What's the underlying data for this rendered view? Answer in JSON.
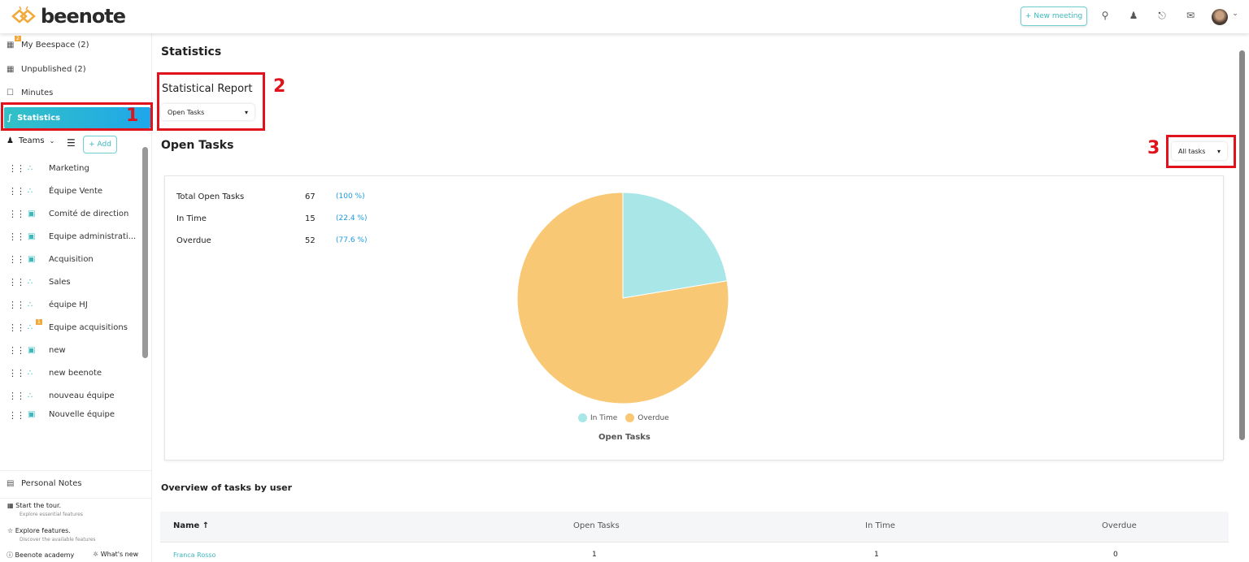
{
  "header": {
    "logo": "beenote",
    "new_meeting": "New meeting",
    "icons": [
      "search-icon",
      "add-user-icon",
      "bell-icon",
      "mail-icon"
    ]
  },
  "sidebar": {
    "nav": [
      {
        "label": "My Beespace (2)",
        "badge": "2"
      },
      {
        "label": "Unpublished (2)"
      },
      {
        "label": "Minutes"
      },
      {
        "label": "Statistics"
      }
    ],
    "teams_label": "Teams",
    "add_label": "Add",
    "teams": [
      {
        "name": "Marketing",
        "icon": "group"
      },
      {
        "name": "Équipe Vente",
        "icon": "group"
      },
      {
        "name": "Comité de direction",
        "icon": "briefcase"
      },
      {
        "name": "Equipe administrati...",
        "icon": "briefcase"
      },
      {
        "name": "Acquisition",
        "icon": "briefcase"
      },
      {
        "name": "Sales",
        "icon": "group"
      },
      {
        "name": "équipe HJ",
        "icon": "group"
      },
      {
        "name": "Equipe acquisitions",
        "icon": "group",
        "badge": "1"
      },
      {
        "name": "new",
        "icon": "briefcase"
      },
      {
        "name": "new beenote",
        "icon": "group"
      },
      {
        "name": "nouveau équipe",
        "icon": "group"
      },
      {
        "name": "Nouvelle équipe",
        "icon": "briefcase"
      }
    ],
    "personal_notes": "Personal Notes",
    "tour": {
      "title": "Start the tour.",
      "sub": "Explore essential features"
    },
    "explore": {
      "title": "Explore features.",
      "sub": "Discover the available features"
    },
    "academy": "Beenote academy",
    "whats_new": "What's new"
  },
  "main": {
    "title": "Statistics",
    "report_label": "Statistical Report",
    "report_value": "Open Tasks",
    "section_title": "Open Tasks",
    "filter_value": "All tasks",
    "stats": [
      {
        "label": "Total Open Tasks",
        "value": "67",
        "pct": "(100 %)"
      },
      {
        "label": "In Time",
        "value": "15",
        "pct": "(22.4 %)"
      },
      {
        "label": "Overdue",
        "value": "52",
        "pct": "(77.6 %)"
      }
    ],
    "overview_title": "Overview of tasks by user",
    "table": {
      "headers": [
        "Name ↑",
        "Open Tasks",
        "In Time",
        "Overdue"
      ],
      "rows": [
        [
          "Franca Rosso",
          "1",
          "1",
          "0"
        ]
      ]
    }
  },
  "chart_data": {
    "type": "pie",
    "title": "Open Tasks",
    "categories": [
      "In Time",
      "Overdue"
    ],
    "values": [
      15,
      52
    ],
    "colors": [
      "#a8e6e8",
      "#f9c874"
    ],
    "legend": "bottom"
  },
  "annotations": [
    "1",
    "2",
    "3"
  ],
  "colors": {
    "accent": "#3bb8bd",
    "link": "#1e9be0",
    "annotation": "#e0121b"
  }
}
